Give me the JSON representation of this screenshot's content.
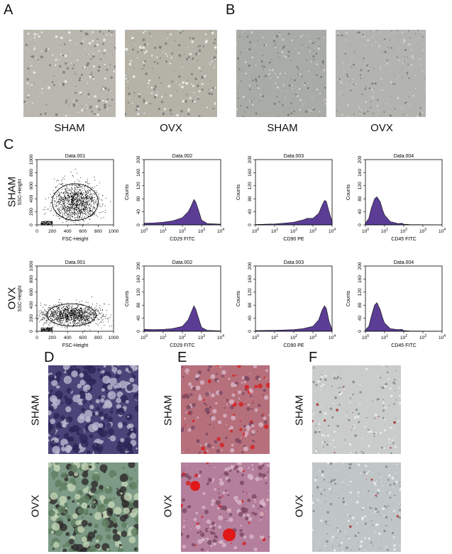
{
  "panels": {
    "A": "A",
    "B": "B",
    "C": "C",
    "D": "D",
    "E": "E",
    "F": "F"
  },
  "groups": {
    "sham": "SHAM",
    "ovx": "OVX"
  },
  "micrographs": {
    "A": {
      "sham": "#b9b7ae",
      "ovx": "#b5b2a8",
      "style": "bright cells on grey"
    },
    "B": {
      "sham": "#a9aba6",
      "ovx": "#b3b4b0",
      "style": "spindle fibroblast-like cells"
    },
    "D": {
      "sham": "#4a4478",
      "ovx": "#7c9a86",
      "style": "dark purple staining"
    },
    "E": {
      "sham": "#b6707c",
      "ovx": "#b47f9c",
      "style": "red nodules"
    },
    "F": {
      "sham": "#c9cccb",
      "ovx": "#c0c5c6",
      "style": "sparse red droplets"
    }
  },
  "chart_data": [
    {
      "type": "scatter",
      "title": "Data.001",
      "xlabel": "FSC-Height",
      "ylabel": "SSC-Height",
      "xlim": [
        0,
        1000
      ],
      "ylim": [
        0,
        1000
      ],
      "xticks": [
        "0",
        "200",
        "400",
        "600",
        "800",
        "1000"
      ],
      "yticks": [
        "0",
        "200",
        "400",
        "600",
        "800",
        "1000"
      ],
      "group": "SHAM",
      "gate": "ellipse"
    },
    {
      "type": "area",
      "title": "Data.002",
      "xlabel": "CD29 FITC",
      "ylabel": "Counts",
      "xscale": "log",
      "xlim": [
        1,
        10000
      ],
      "ylim": [
        0,
        200
      ],
      "yticks": [
        "0",
        "40",
        "80",
        "120",
        "160",
        "200"
      ],
      "xticks": [
        "10^0",
        "10^1",
        "10^2",
        "10^3",
        "10^4"
      ],
      "color": "#5b3d96",
      "group": "SHAM",
      "x": [
        1,
        3,
        10,
        30,
        100,
        200,
        300,
        400,
        500,
        700,
        1000,
        2000,
        10000
      ],
      "y": [
        5,
        6,
        8,
        12,
        22,
        40,
        60,
        78,
        70,
        45,
        15,
        4,
        2
      ]
    },
    {
      "type": "area",
      "title": "Data.003",
      "xlabel": "CD90 PE",
      "ylabel": "Counts",
      "xscale": "log",
      "xlim": [
        1,
        10000
      ],
      "ylim": [
        0,
        200
      ],
      "yticks": [
        "0",
        "40",
        "80",
        "120",
        "160",
        "200"
      ],
      "xticks": [
        "10^0",
        "10^1",
        "10^2",
        "10^3",
        "10^4"
      ],
      "color": "#5b3d96",
      "group": "SHAM",
      "x": [
        1,
        10,
        30,
        100,
        300,
        500,
        1000,
        2000,
        3000,
        4000,
        5000,
        7000,
        10000
      ],
      "y": [
        1,
        3,
        5,
        8,
        15,
        20,
        20,
        35,
        60,
        75,
        72,
        40,
        10
      ]
    },
    {
      "type": "area",
      "title": "Data.004",
      "xlabel": "CD45 FITC",
      "ylabel": "Counts",
      "xscale": "log",
      "xlim": [
        1,
        10000
      ],
      "ylim": [
        0,
        200
      ],
      "yticks": [
        "0",
        "40",
        "80",
        "120",
        "160",
        "200"
      ],
      "xticks": [
        "10^0",
        "10^1",
        "10^2",
        "10^3",
        "10^4"
      ],
      "color": "#5b3d96",
      "group": "SHAM",
      "x": [
        1,
        1.5,
        2,
        3,
        4,
        6,
        8,
        10,
        20,
        50,
        80,
        100,
        200,
        10000
      ],
      "y": [
        5,
        20,
        50,
        80,
        86,
        70,
        45,
        30,
        10,
        4,
        5,
        2,
        1,
        0
      ]
    },
    {
      "type": "scatter",
      "title": "Data.001",
      "xlabel": "FSC-Height",
      "ylabel": "SSC-Height",
      "xlim": [
        0,
        1000
      ],
      "ylim": [
        0,
        1000
      ],
      "xticks": [
        "0",
        "200",
        "400",
        "600",
        "800",
        "1000"
      ],
      "yticks": [
        "0",
        "200",
        "400",
        "600",
        "800",
        "1000"
      ],
      "group": "OVX",
      "gate": "ellipse"
    },
    {
      "type": "area",
      "title": "Data.002",
      "xlabel": "CD29 FITC",
      "ylabel": "Counts",
      "xscale": "log",
      "xlim": [
        1,
        10000
      ],
      "ylim": [
        0,
        200
      ],
      "yticks": [
        "0",
        "40",
        "80",
        "120",
        "160",
        "200"
      ],
      "xticks": [
        "10^0",
        "10^1",
        "10^2",
        "10^3",
        "10^4"
      ],
      "color": "#5b3d96",
      "group": "OVX",
      "x": [
        1,
        3,
        10,
        30,
        100,
        200,
        300,
        400,
        500,
        700,
        1000,
        2000,
        10000
      ],
      "y": [
        6,
        5,
        6,
        8,
        15,
        35,
        60,
        78,
        68,
        40,
        12,
        3,
        1
      ]
    },
    {
      "type": "area",
      "title": "Data.003",
      "xlabel": "CD90 PE",
      "ylabel": "Counts",
      "xscale": "log",
      "xlim": [
        1,
        10000
      ],
      "ylim": [
        0,
        200
      ],
      "yticks": [
        "0",
        "40",
        "80",
        "120",
        "160",
        "200"
      ],
      "xticks": [
        "10^0",
        "10^1",
        "10^2",
        "10^3",
        "10^4"
      ],
      "color": "#5b3d96",
      "group": "OVX",
      "x": [
        1,
        10,
        100,
        300,
        1000,
        2000,
        3000,
        4000,
        5000,
        7000,
        10000
      ],
      "y": [
        2,
        3,
        5,
        8,
        15,
        35,
        65,
        78,
        70,
        30,
        5
      ]
    },
    {
      "type": "area",
      "title": "Data.004",
      "xlabel": "CD45 FITC",
      "ylabel": "Counts",
      "xscale": "log",
      "xlim": [
        1,
        10000
      ],
      "ylim": [
        0,
        200
      ],
      "yticks": [
        "0",
        "40",
        "80",
        "120",
        "160",
        "200"
      ],
      "xticks": [
        "10^0",
        "10^1",
        "10^2",
        "10^3",
        "10^4"
      ],
      "color": "#5b3d96",
      "group": "OVX",
      "x": [
        1,
        1.5,
        2,
        3,
        4,
        6,
        8,
        10,
        20,
        50,
        80,
        100,
        200,
        10000
      ],
      "y": [
        4,
        15,
        45,
        80,
        88,
        65,
        40,
        25,
        8,
        5,
        6,
        2,
        1,
        0
      ]
    }
  ]
}
